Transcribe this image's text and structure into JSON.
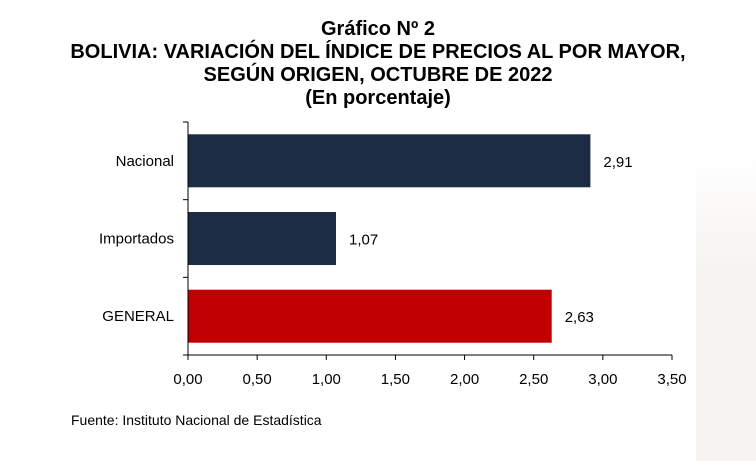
{
  "title": {
    "line1": "Gráfico Nº 2",
    "line2": "BOLIVIA: VARIACIÓN DEL ÍNDICE DE PRECIOS AL POR MAYOR,",
    "line3": "SEGÚN ORIGEN, OCTUBRE DE 2022",
    "line4": "(En porcentaje)"
  },
  "source": "Fuente: Instituto Nacional de Estadística",
  "colors": {
    "navy": "#1c2c45",
    "red": "#c00000"
  },
  "chart_data": {
    "type": "bar",
    "orientation": "horizontal",
    "categories": [
      "Nacional",
      "Importados",
      "GENERAL"
    ],
    "values": [
      2.91,
      1.07,
      2.63
    ],
    "value_labels": [
      "2,91",
      "1,07",
      "2,63"
    ],
    "bar_colors": [
      "#1c2c45",
      "#1c2c45",
      "#c00000"
    ],
    "xlim": [
      0,
      3.5
    ],
    "xticks": [
      0,
      0.5,
      1,
      1.5,
      2,
      2.5,
      3,
      3.5
    ],
    "xtick_labels": [
      "0,00",
      "0,50",
      "1,00",
      "1,50",
      "2,00",
      "2,50",
      "3,00",
      "3,50"
    ],
    "grid": false,
    "legend": "none"
  }
}
